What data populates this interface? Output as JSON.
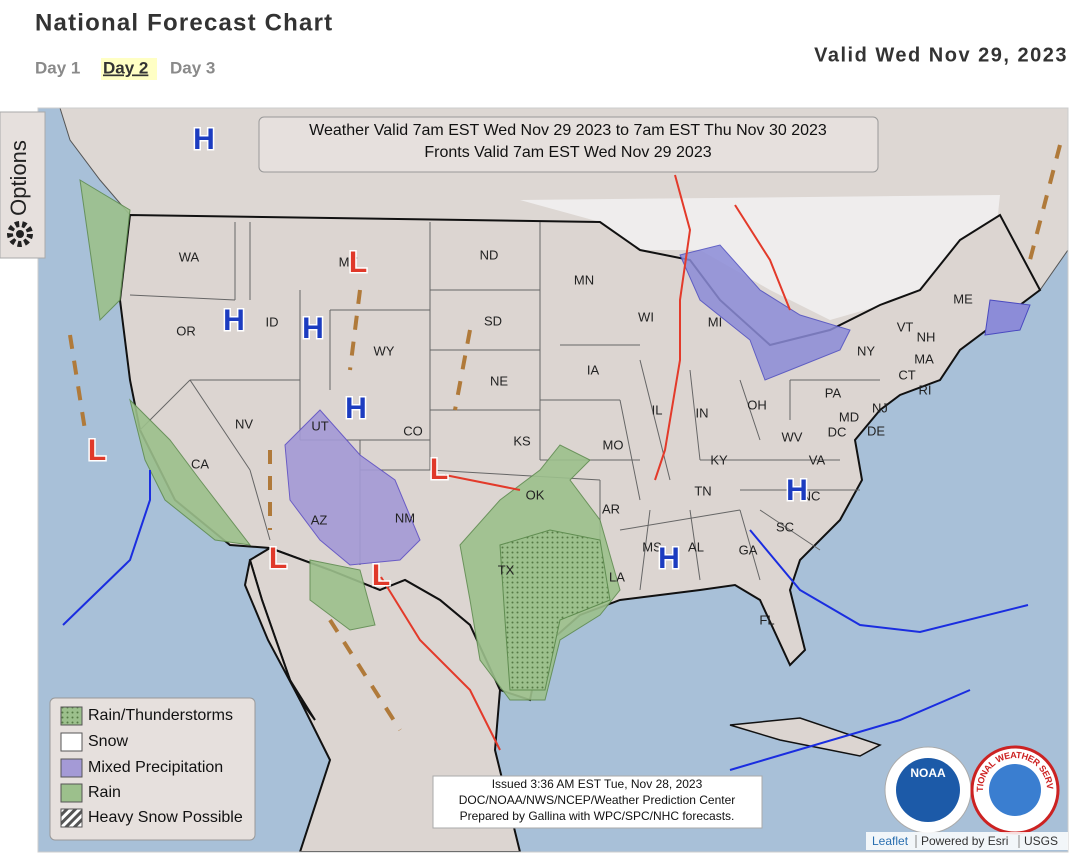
{
  "header": {
    "title": "National Forecast Chart",
    "tabs": [
      "Day 1",
      "Day 2",
      "Day 3"
    ],
    "selected_tab": 1,
    "valid": "Valid Wed Nov 29, 2023"
  },
  "options": "Options",
  "map": {
    "banner": [
      "Weather Valid 7am EST Wed Nov 29 2023 to 7am EST Thu Nov 30 2023",
      "Fronts Valid 7am EST Wed Nov 29 2023"
    ],
    "state_labels": [
      "WA",
      "OR",
      "ID",
      "MT",
      "ND",
      "SD",
      "WY",
      "NE",
      "MN",
      "WI",
      "MI",
      "IA",
      "IL",
      "IN",
      "OH",
      "PA",
      "NY",
      "NV",
      "UT",
      "CO",
      "KS",
      "MO",
      "KY",
      "WV",
      "VA",
      "CA",
      "AZ",
      "NM",
      "OK",
      "AR",
      "TN",
      "NC",
      "SC",
      "MS",
      "AL",
      "GA",
      "LA",
      "TX",
      "FL",
      "ME",
      "VT",
      "NH",
      "MA",
      "CT",
      "RI",
      "NJ",
      "DE",
      "MD",
      "DC"
    ],
    "pressure_centers": [
      {
        "label": "H",
        "color": "#1c3cc0"
      },
      {
        "label": "H",
        "color": "#1c3cc0"
      },
      {
        "label": "H",
        "color": "#1c3cc0"
      },
      {
        "label": "H",
        "color": "#1c3cc0"
      },
      {
        "label": "H",
        "color": "#1c3cc0"
      },
      {
        "label": "H",
        "color": "#1c3cc0"
      },
      {
        "label": "L",
        "color": "#e0392a"
      },
      {
        "label": "L",
        "color": "#e0392a"
      },
      {
        "label": "L",
        "color": "#e0392a"
      },
      {
        "label": "L",
        "color": "#e0392a"
      },
      {
        "label": "L",
        "color": "#e0392a"
      }
    ],
    "legend": [
      "Rain/Thunderstorms",
      "Snow",
      "Mixed Precipitation",
      "Rain",
      "Heavy Snow Possible"
    ],
    "issued": [
      "Issued  3:36 AM EST Tue, Nov 28, 2023",
      "DOC/NOAA/NWS/NCEP/Weather Prediction Center",
      "Prepared by Gallina with WPC/SPC/NHC forecasts."
    ],
    "logos": [
      "NOAA",
      "NATIONAL WEATHER SERVICE"
    ],
    "attribution": [
      "Leaflet",
      "Powered by Esri",
      "USGS"
    ]
  }
}
